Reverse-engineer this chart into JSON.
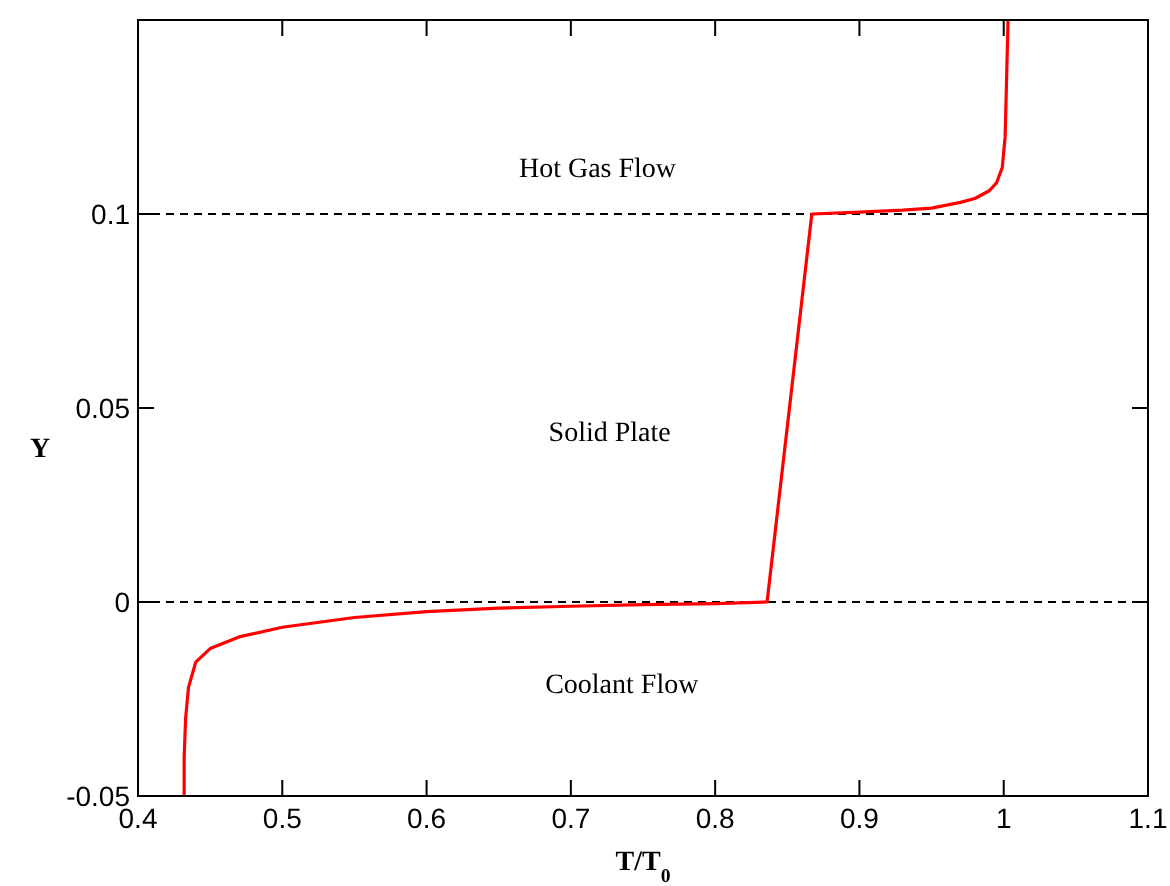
{
  "chart_data": {
    "type": "line",
    "xlabel": "T/T$_{0}$",
    "ylabel": "Y",
    "xlim": [
      0.4,
      1.1
    ],
    "xticks": [
      0.4,
      0.5,
      0.6,
      0.7,
      0.8,
      0.9,
      1,
      1.1
    ],
    "ylim": [
      -0.05,
      0.15
    ],
    "yticks": [
      -0.05,
      0,
      0.05,
      0.1
    ],
    "marker": "none",
    "line_style": "solid",
    "grid": false,
    "series": [
      {
        "color": "#ff0000",
        "x": [
          0.432,
          0.432,
          0.433,
          0.435,
          0.44,
          0.45,
          0.47,
          0.5,
          0.55,
          0.6,
          0.65,
          0.7,
          0.75,
          0.8,
          0.836,
          0.867,
          0.9,
          0.93,
          0.95,
          0.97,
          0.98,
          0.99,
          0.995,
          0.999,
          1.001,
          1.002,
          1.003
        ],
        "values": [
          -0.05,
          -0.04,
          -0.03,
          -0.022,
          -0.0155,
          -0.012,
          -0.009,
          -0.0065,
          -0.004,
          -0.0025,
          -0.0016,
          -0.0011,
          -0.0007,
          -0.0004,
          0,
          0.1,
          0.1005,
          0.101,
          0.1015,
          0.103,
          0.104,
          0.106,
          0.108,
          0.112,
          0.12,
          0.135,
          0.15
        ]
      }
    ],
    "ref_lines": [
      {
        "axis": "y",
        "value": 0.1,
        "line_style": "dashed",
        "color": "#000000"
      },
      {
        "axis": "y",
        "value": 0,
        "line_style": "dashed",
        "color": "#000000"
      }
    ],
    "annotations": [
      "Hot Gas Flow",
      "Solid Plate",
      "Coolant Flow"
    ]
  }
}
